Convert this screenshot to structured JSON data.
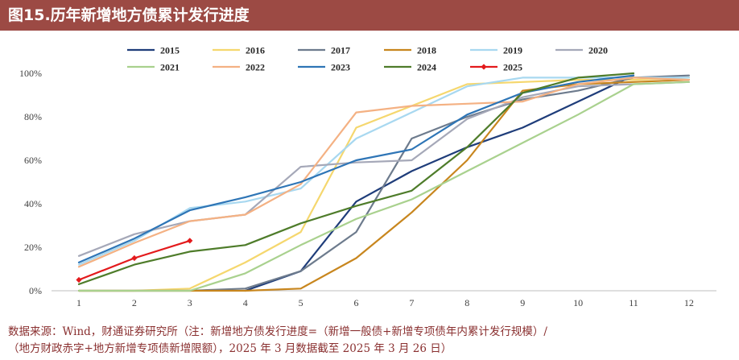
{
  "header": {
    "title": "图15.历年新增地方债累计发行进度",
    "accent_color": "#9c4a44"
  },
  "footer": {
    "line1": "数据来源：Wind，财通证券研究所（注：新增地方债发行进度=（新增一般债+新增专项债年内累计发行规模）/",
    "line2": "（地方财政赤字+地方新增专项债新增限额），2025 年 3 月数据截至 2025 年 3 月 26 日）"
  },
  "chart_data": {
    "type": "line",
    "title": "",
    "xlabel": "",
    "ylabel": "",
    "x": [
      1,
      2,
      3,
      4,
      5,
      6,
      7,
      8,
      9,
      10,
      11,
      12
    ],
    "x_tick_labels": [
      "1",
      "2",
      "3",
      "4",
      "5",
      "6",
      "7",
      "8",
      "9",
      "10",
      "11",
      "12"
    ],
    "y_tick_labels": [
      "0%",
      "20%",
      "40%",
      "60%",
      "80%",
      "100%"
    ],
    "ylim": [
      0,
      100
    ],
    "y_ticks": [
      0,
      20,
      40,
      60,
      80,
      100
    ],
    "grid": false,
    "legend_position": "top",
    "series": [
      {
        "name": "2015",
        "color": "#1f3d7a",
        "values": [
          null,
          null,
          null,
          0,
          9,
          41,
          55,
          66,
          75,
          87,
          99,
          null
        ]
      },
      {
        "name": "2016",
        "color": "#f5d76e",
        "values": [
          0,
          0,
          1,
          13,
          27,
          75,
          85,
          95,
          96,
          97,
          97,
          98
        ]
      },
      {
        "name": "2017",
        "color": "#6d7b8d",
        "values": [
          0,
          0,
          0,
          1,
          9,
          27,
          70,
          80,
          88,
          92,
          98,
          99
        ]
      },
      {
        "name": "2018",
        "color": "#c8861e",
        "values": [
          0,
          0,
          0,
          0,
          1,
          15,
          36,
          60,
          92,
          95,
          96,
          97
        ]
      },
      {
        "name": "2019",
        "color": "#a8d8f0",
        "values": [
          12,
          23,
          38,
          41,
          47,
          70,
          82,
          94,
          98,
          98,
          98,
          98
        ]
      },
      {
        "name": "2020",
        "color": "#a5a8b8",
        "values": [
          16,
          26,
          32,
          35,
          57,
          59,
          60,
          79,
          89,
          94,
          95,
          96
        ]
      },
      {
        "name": "2021",
        "color": "#a9d18e",
        "values": [
          0,
          0,
          0,
          8,
          21,
          33,
          42,
          55,
          68,
          81,
          95,
          96
        ]
      },
      {
        "name": "2022",
        "color": "#f4b183",
        "values": [
          11,
          22,
          32,
          35,
          49,
          82,
          85,
          86,
          87,
          95,
          98,
          97
        ]
      },
      {
        "name": "2023",
        "color": "#2e75b6",
        "values": [
          13,
          24,
          37,
          43,
          50,
          60,
          65,
          81,
          91,
          96,
          99,
          null
        ]
      },
      {
        "name": "2024",
        "color": "#4e7c2a",
        "values": [
          3,
          12,
          18,
          21,
          31,
          39,
          46,
          66,
          91,
          98,
          100,
          null
        ]
      },
      {
        "name": "2025",
        "color": "#e31a1c",
        "values": [
          5,
          15,
          23,
          null,
          null,
          null,
          null,
          null,
          null,
          null,
          null,
          null
        ],
        "markers": true
      }
    ]
  }
}
